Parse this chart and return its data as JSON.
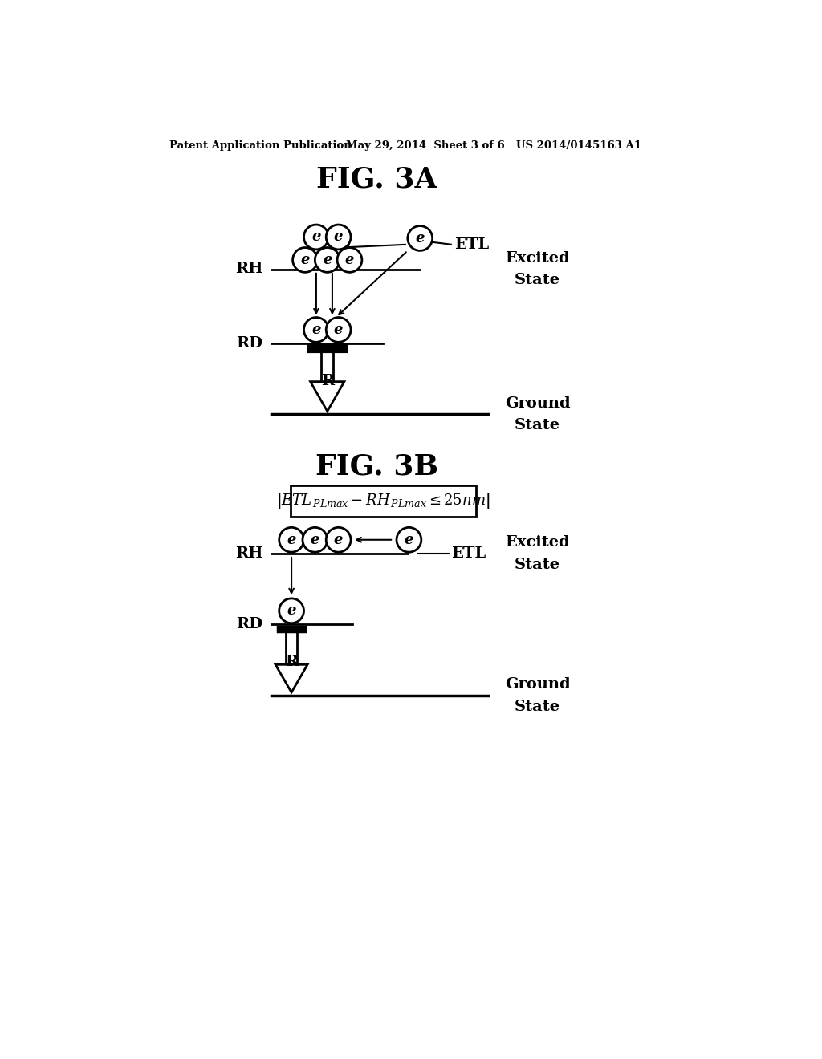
{
  "bg_color": "#ffffff",
  "header_left": "Patent Application Publication",
  "header_mid": "May 29, 2014  Sheet 3 of 6",
  "header_right": "US 2014/0145163 A1",
  "fig3a_title": "FIG. 3A",
  "fig3b_title": "FIG. 3B"
}
